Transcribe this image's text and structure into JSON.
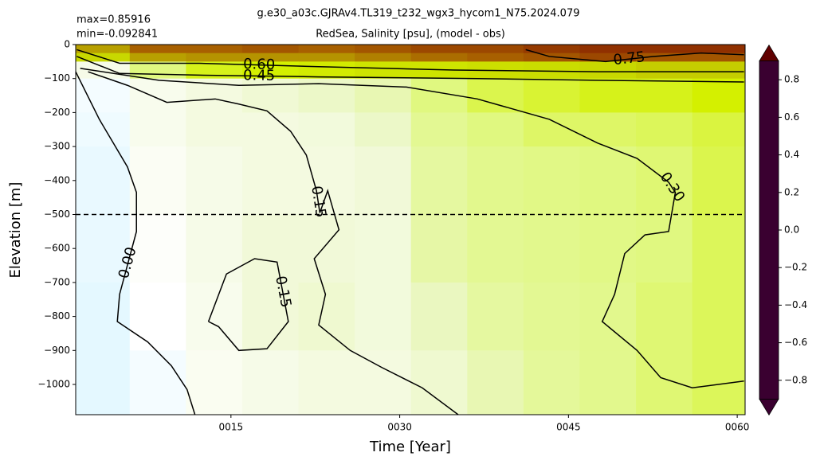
{
  "chart_data": {
    "type": "heatmap",
    "title": "g.e30_a03c.GJRAv4.TL319_t232_wgx3_hycom1_N75.2024.079",
    "subtitle": "RedSea, Salinity [psu], (model - obs)",
    "max_label": "max=0.85916",
    "min_label": "min=-0.092841",
    "xlabel": "Time [Year]",
    "ylabel": "Elevation [m]",
    "xlim": [
      1.2,
      60.7
    ],
    "ylim": [
      -1089,
      0
    ],
    "xticks": [
      {
        "value": 15,
        "label": "0015"
      },
      {
        "value": 30,
        "label": "0030"
      },
      {
        "value": 45,
        "label": "0045"
      },
      {
        "value": 60,
        "label": "0060"
      }
    ],
    "yticks": [
      0,
      {
        "value": -100,
        "label": "−100"
      },
      {
        "value": -200,
        "label": "−200"
      },
      {
        "value": -300,
        "label": "−300"
      },
      {
        "value": -400,
        "label": "−400"
      },
      {
        "value": -500,
        "label": "−500"
      },
      {
        "value": -600,
        "label": "−600"
      },
      {
        "value": -700,
        "label": "−700"
      },
      {
        "value": -800,
        "label": "−800"
      },
      {
        "value": -900,
        "label": "−900"
      },
      {
        "value": -1000,
        "label": "−1000"
      }
    ],
    "x_edges": [
      1.2,
      6,
      11,
      16,
      21,
      26,
      31,
      36,
      41,
      46,
      51,
      56,
      60.7
    ],
    "y_edges": [
      0,
      -25,
      -50,
      -100,
      -200,
      -300,
      -500,
      -700,
      -900,
      -1089
    ],
    "z": [
      [
        0.6,
        0.7,
        0.7,
        0.72,
        0.7,
        0.72,
        0.75,
        0.75,
        0.78,
        0.8,
        0.8,
        0.8
      ],
      [
        0.5,
        0.6,
        0.62,
        0.62,
        0.62,
        0.65,
        0.68,
        0.7,
        0.72,
        0.75,
        0.72,
        0.72
      ],
      [
        0.1,
        0.3,
        0.38,
        0.4,
        0.42,
        0.45,
        0.45,
        0.47,
        0.48,
        0.5,
        0.52,
        0.52
      ],
      [
        -0.02,
        0.08,
        0.12,
        0.15,
        0.18,
        0.22,
        0.3,
        0.34,
        0.36,
        0.38,
        0.38,
        0.4
      ],
      [
        -0.03,
        0.08,
        0.12,
        0.12,
        0.13,
        0.18,
        0.27,
        0.3,
        0.32,
        0.32,
        0.33,
        0.35
      ],
      [
        -0.04,
        0.05,
        0.1,
        0.12,
        0.12,
        0.14,
        0.25,
        0.28,
        0.29,
        0.3,
        0.31,
        0.34
      ],
      [
        -0.04,
        0.02,
        0.1,
        0.14,
        0.14,
        0.13,
        0.24,
        0.27,
        0.28,
        0.29,
        0.3,
        0.33
      ],
      [
        -0.05,
        0.0,
        0.08,
        0.14,
        0.16,
        0.13,
        0.2,
        0.25,
        0.27,
        0.28,
        0.31,
        0.33
      ],
      [
        -0.05,
        -0.02,
        0.06,
        0.1,
        0.12,
        0.12,
        0.16,
        0.22,
        0.26,
        0.28,
        0.31,
        0.33
      ]
    ],
    "hline": -500,
    "contours": [
      {
        "label": "0.00",
        "x": [
          1.2,
          3.3,
          5.8,
          6.6,
          6.6,
          5.1,
          4.9,
          7.6,
          9.7,
          11.1,
          11.8
        ],
        "y": [
          -80,
          -220,
          -360,
          -435,
          -550,
          -735,
          -815,
          -875,
          -945,
          -1015,
          -1089
        ]
      },
      {
        "label": "0.15",
        "x": [
          2.3,
          5.8,
          9.3,
          13.6,
          15.7,
          18.2,
          20.3,
          21.7,
          22.6,
          22.9,
          23.6,
          24.6,
          22.4,
          23.4,
          22.8,
          25.6,
          28.4,
          32.0,
          35.2
        ],
        "y": [
          -80,
          -120,
          -170,
          -160,
          -175,
          -195,
          -255,
          -325,
          -430,
          -495,
          -430,
          -545,
          -630,
          -735,
          -825,
          -900,
          -950,
          -1010,
          -1089
        ]
      },
      {
        "label": "0.15",
        "x": [
          13.0,
          14.6,
          17.1,
          19.1,
          20.1,
          18.2,
          15.7,
          13.9,
          13.0
        ],
        "y": [
          -815,
          -675,
          -630,
          -640,
          -815,
          -895,
          -900,
          -830,
          -815
        ]
      },
      {
        "label": "0.30",
        "x": [
          1.6,
          8.6,
          15.7,
          22.8,
          30.6,
          36.9,
          43.3,
          47.6,
          51.1,
          53.9,
          54.5,
          53.9,
          51.8,
          50.0,
          49.1,
          48.0,
          51.1,
          53.2,
          56.0,
          60.6
        ],
        "y": [
          -70,
          -105,
          -120,
          -115,
          -125,
          -160,
          -220,
          -290,
          -335,
          -405,
          -435,
          -550,
          -560,
          -615,
          -735,
          -815,
          -900,
          -980,
          -1010,
          -990
        ]
      },
      {
        "label": "0.45",
        "x": [
          1.3,
          5.1,
          12.2,
          22.8,
          36.9,
          47.6,
          60.6
        ],
        "y": [
          -35,
          -85,
          -90,
          -95,
          -100,
          -105,
          -110
        ]
      },
      {
        "label": "0.60",
        "x": [
          1.3,
          5.1,
          12.2,
          22.8,
          34.8,
          47.6,
          60.6
        ],
        "y": [
          -15,
          -55,
          -55,
          -65,
          -75,
          -80,
          -80
        ]
      },
      {
        "label": "0.75",
        "x": [
          41.2,
          43.3,
          48.3,
          52.5,
          56.8,
          60.6
        ],
        "y": [
          -15,
          -35,
          -50,
          -35,
          -25,
          -30
        ]
      }
    ],
    "clim": [
      -0.9,
      0.9
    ],
    "cticks": [
      {
        "value": -0.8,
        "label": "−0.8"
      },
      {
        "value": -0.6,
        "label": "−0.6"
      },
      {
        "value": -0.4,
        "label": "−0.4"
      },
      {
        "value": -0.2,
        "label": "−0.2"
      },
      {
        "value": 0,
        "label": "0.0"
      },
      0.2,
      0.4,
      0.6,
      0.8
    ],
    "colormap": [
      [
        -0.9,
        "#3a0030"
      ],
      [
        -0.8,
        "#5a1060"
      ],
      [
        -0.7,
        "#802090"
      ],
      [
        -0.6,
        "#5030c0"
      ],
      [
        -0.5,
        "#2040f0"
      ],
      [
        -0.4,
        "#0060ff"
      ],
      [
        -0.3,
        "#5090ff"
      ],
      [
        -0.2,
        "#a0c0ff"
      ],
      [
        -0.1,
        "#c8f0ff"
      ],
      [
        0,
        "#ffffff"
      ],
      [
        0.1,
        "#f6fbe8"
      ],
      [
        0.2,
        "#eaf7c0"
      ],
      [
        0.3,
        "#e0f880"
      ],
      [
        0.4,
        "#d4f000"
      ],
      [
        0.5,
        "#c8d800"
      ],
      [
        0.6,
        "#b8a000"
      ],
      [
        0.7,
        "#a86000"
      ],
      [
        0.8,
        "#903000"
      ],
      [
        0.9,
        "#600000"
      ]
    ]
  }
}
